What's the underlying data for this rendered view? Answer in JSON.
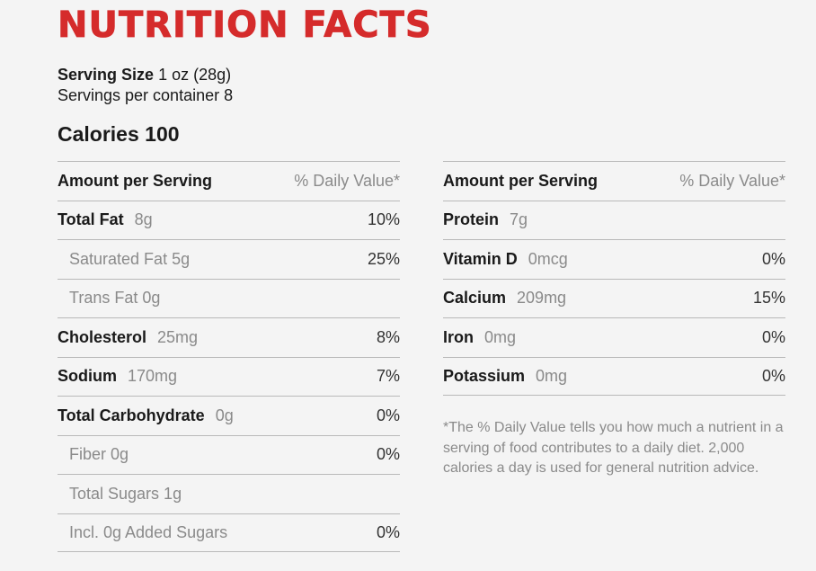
{
  "title": "NUTRITION FACTS",
  "serving": {
    "size_label": "Serving Size",
    "size_value": "1 oz (28g)",
    "per_container": "Servings per container 8"
  },
  "calories": "Calories 100",
  "left_table": {
    "header": {
      "label": "Amount per Serving",
      "dv": "% Daily Value*"
    },
    "rows": [
      {
        "name": "Total Fat",
        "amount": "8g",
        "dv": "10%"
      },
      {
        "sub": "Saturated Fat 5g",
        "dv": "25%"
      },
      {
        "sub": "Trans Fat 0g",
        "dv": ""
      },
      {
        "name": "Cholesterol",
        "amount": "25mg",
        "dv": "8%"
      },
      {
        "name": "Sodium",
        "amount": "170mg",
        "dv": "7%"
      },
      {
        "name": "Total Carbohydrate",
        "amount": "0g",
        "dv": "0%"
      },
      {
        "sub": "Fiber 0g",
        "dv": "0%"
      },
      {
        "sub": "Total Sugars 1g",
        "dv": ""
      },
      {
        "sub": "Incl. 0g Added Sugars",
        "dv": "0%"
      }
    ]
  },
  "right_table": {
    "header": {
      "label": "Amount per Serving",
      "dv": "% Daily Value*"
    },
    "rows": [
      {
        "name": "Protein",
        "amount": "7g",
        "dv": ""
      },
      {
        "name": "Vitamin D",
        "amount": "0mcg",
        "dv": "0%"
      },
      {
        "name": "Calcium",
        "amount": "209mg",
        "dv": "15%"
      },
      {
        "name": "Iron",
        "amount": "0mg",
        "dv": "0%"
      },
      {
        "name": "Potassium",
        "amount": "0mg",
        "dv": "0%"
      }
    ]
  },
  "footnote": "*The % Daily Value tells you how much a nutrient in a serving of food contributes to a daily diet. 2,000 calories a day is used for general nutrition advice.",
  "colors": {
    "title": "#d52b2b",
    "muted_text": "#8a8a8a",
    "rule": "#b9b9b9"
  }
}
